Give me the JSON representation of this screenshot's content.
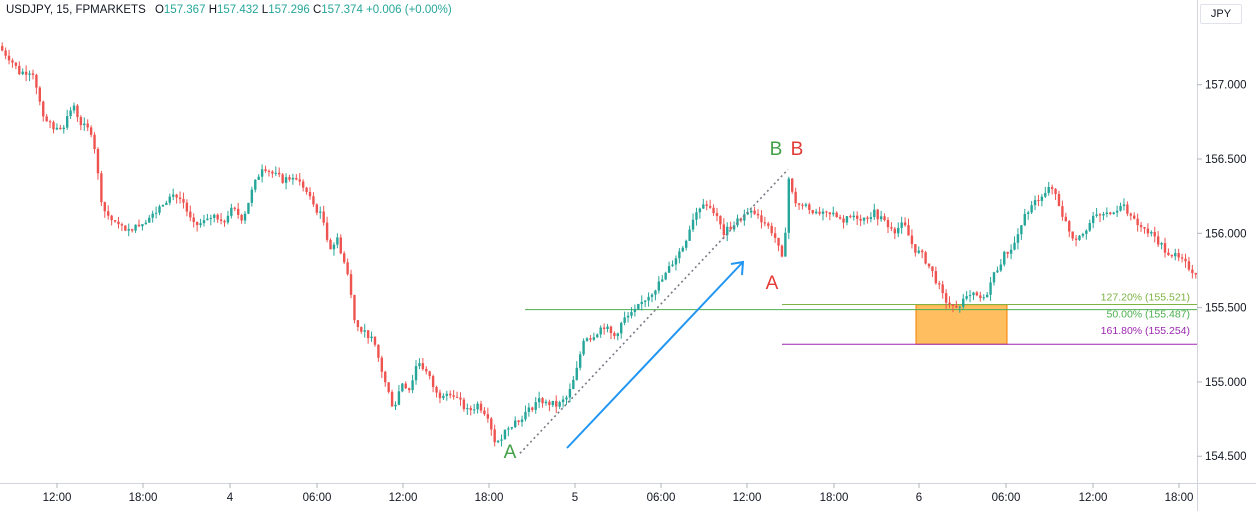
{
  "legend": {
    "symbol": "USDJPY, 15, FPMARKETS",
    "open_label": "O",
    "open": "157.367",
    "high_label": "H",
    "high": "157.432",
    "low_label": "L",
    "low": "157.296",
    "close_label": "C",
    "close": "157.374",
    "change": "+0.006 (+0.00%)"
  },
  "currency_button": "JPY",
  "colors": {
    "up": "#26a69a",
    "down": "#ef5350",
    "fib_127": "#7cb342",
    "fib_50": "#4caf50",
    "fib_161": "#9c27b0",
    "arrow": "#2196f3",
    "zone": "#ff9800",
    "label_green": "#43a047",
    "label_red": "#e53935"
  },
  "chart_data": {
    "type": "candlestick",
    "y_range": [
      154.32,
      157.57
    ],
    "y_ticks": [
      "157.000",
      "156.500",
      "156.000",
      "155.500",
      "155.000",
      "154.500"
    ],
    "x_ticks": [
      "12:00",
      "18:00",
      "4",
      "06:00",
      "12:00",
      "18:00",
      "5",
      "06:00",
      "12:00",
      "18:00",
      "6",
      "06:00",
      "12:00",
      "18:00"
    ],
    "path_points": [
      [
        0,
        157.26
      ],
      [
        12,
        157.18
      ],
      [
        22,
        157.08
      ],
      [
        35,
        157.1
      ],
      [
        45,
        156.8
      ],
      [
        55,
        156.7
      ],
      [
        65,
        156.72
      ],
      [
        75,
        156.86
      ],
      [
        85,
        156.72
      ],
      [
        95,
        156.68
      ],
      [
        100,
        156.4
      ],
      [
        105,
        156.17
      ],
      [
        115,
        156.08
      ],
      [
        125,
        156.03
      ],
      [
        135,
        156.05
      ],
      [
        145,
        156.08
      ],
      [
        155,
        156.12
      ],
      [
        165,
        156.2
      ],
      [
        175,
        156.26
      ],
      [
        185,
        156.22
      ],
      [
        195,
        156.05
      ],
      [
        205,
        156.07
      ],
      [
        215,
        156.12
      ],
      [
        225,
        156.1
      ],
      [
        235,
        156.16
      ],
      [
        245,
        156.1
      ],
      [
        255,
        156.3
      ],
      [
        265,
        156.46
      ],
      [
        275,
        156.4
      ],
      [
        285,
        156.36
      ],
      [
        295,
        156.38
      ],
      [
        305,
        156.32
      ],
      [
        315,
        156.2
      ],
      [
        325,
        156.1
      ],
      [
        332,
        155.9
      ],
      [
        340,
        155.96
      ],
      [
        350,
        155.72
      ],
      [
        358,
        155.38
      ],
      [
        368,
        155.34
      ],
      [
        378,
        155.22
      ],
      [
        388,
        154.98
      ],
      [
        396,
        154.82
      ],
      [
        404,
        155.0
      ],
      [
        412,
        154.95
      ],
      [
        420,
        155.15
      ],
      [
        430,
        155.05
      ],
      [
        440,
        154.9
      ],
      [
        450,
        154.95
      ],
      [
        460,
        154.88
      ],
      [
        470,
        154.8
      ],
      [
        480,
        154.85
      ],
      [
        490,
        154.78
      ],
      [
        498,
        154.58
      ],
      [
        510,
        154.7
      ],
      [
        520,
        154.75
      ],
      [
        530,
        154.8
      ],
      [
        540,
        154.88
      ],
      [
        550,
        154.86
      ],
      [
        560,
        154.84
      ],
      [
        570,
        154.9
      ],
      [
        578,
        155.05
      ],
      [
        586,
        155.3
      ],
      [
        596,
        155.32
      ],
      [
        606,
        155.38
      ],
      [
        616,
        155.3
      ],
      [
        626,
        155.42
      ],
      [
        636,
        155.46
      ],
      [
        646,
        155.55
      ],
      [
        656,
        155.62
      ],
      [
        666,
        155.7
      ],
      [
        676,
        155.82
      ],
      [
        686,
        155.92
      ],
      [
        696,
        156.12
      ],
      [
        706,
        156.22
      ],
      [
        716,
        156.15
      ],
      [
        726,
        156.0
      ],
      [
        736,
        156.06
      ],
      [
        746,
        156.12
      ],
      [
        756,
        156.14
      ],
      [
        766,
        156.08
      ],
      [
        776,
        156.0
      ],
      [
        786,
        155.78
      ],
      [
        790,
        156.4
      ],
      [
        796,
        156.22
      ],
      [
        806,
        156.18
      ],
      [
        816,
        156.15
      ],
      [
        826,
        156.12
      ],
      [
        836,
        156.12
      ],
      [
        846,
        156.08
      ],
      [
        856,
        156.12
      ],
      [
        866,
        156.1
      ],
      [
        876,
        156.14
      ],
      [
        886,
        156.08
      ],
      [
        896,
        156.02
      ],
      [
        906,
        156.06
      ],
      [
        916,
        155.9
      ],
      [
        926,
        155.84
      ],
      [
        936,
        155.72
      ],
      [
        946,
        155.56
      ],
      [
        956,
        155.5
      ],
      [
        966,
        155.55
      ],
      [
        976,
        155.58
      ],
      [
        986,
        155.55
      ],
      [
        996,
        155.72
      ],
      [
        1006,
        155.85
      ],
      [
        1016,
        155.92
      ],
      [
        1026,
        156.1
      ],
      [
        1036,
        156.2
      ],
      [
        1046,
        156.28
      ],
      [
        1056,
        156.3
      ],
      [
        1066,
        156.1
      ],
      [
        1076,
        155.96
      ],
      [
        1086,
        156.02
      ],
      [
        1096,
        156.1
      ],
      [
        1106,
        156.12
      ],
      [
        1116,
        156.15
      ],
      [
        1126,
        156.2
      ],
      [
        1136,
        156.08
      ],
      [
        1146,
        156.02
      ],
      [
        1156,
        155.98
      ],
      [
        1166,
        155.9
      ],
      [
        1176,
        155.85
      ],
      [
        1186,
        155.8
      ],
      [
        1195,
        155.75
      ]
    ],
    "fib_lines": [
      {
        "label": "127.20% (155.521)",
        "value": 155.521,
        "color_key": "fib_127"
      },
      {
        "label": "50.00% (155.487)",
        "value": 155.487,
        "color_key": "fib_50"
      },
      {
        "label": "161.80% (155.254)",
        "value": 155.254,
        "color_key": "fib_161"
      }
    ],
    "zone": {
      "y_top": 155.52,
      "y_bottom": 155.254
    },
    "dotted_line": {
      "from": [
        520,
        154.52
      ],
      "to": [
        788,
        156.43
      ]
    },
    "wave_labels": [
      {
        "text": "A",
        "color_key": "label_green"
      },
      {
        "text": "B",
        "color_key": "label_green"
      },
      {
        "text": "B",
        "color_key": "label_red"
      },
      {
        "text": "A",
        "color_key": "label_red"
      }
    ]
  }
}
